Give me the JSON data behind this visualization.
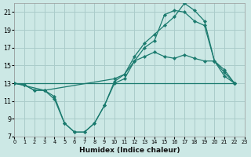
{
  "xlabel": "Humidex (Indice chaleur)",
  "background_color": "#cce8e5",
  "grid_color": "#aaccca",
  "line_color": "#1a7a6e",
  "xlim": [
    0,
    23
  ],
  "ylim": [
    7,
    22
  ],
  "xtick_vals": [
    0,
    1,
    2,
    3,
    4,
    5,
    6,
    7,
    8,
    9,
    10,
    11,
    12,
    13,
    14,
    15,
    16,
    17,
    18,
    19,
    20,
    21,
    22,
    23
  ],
  "ytick_vals": [
    7,
    9,
    11,
    13,
    15,
    17,
    19,
    21
  ],
  "series": [
    {
      "x": [
        0,
        1,
        2,
        3,
        4,
        5,
        6,
        7,
        8,
        9,
        10,
        11,
        12,
        13,
        14,
        15,
        16,
        17,
        18,
        19,
        20,
        21,
        22
      ],
      "y": [
        13,
        12.8,
        12.2,
        12.2,
        11.5,
        8.5,
        7.5,
        7.5,
        8.5,
        10.5,
        13.2,
        14.0,
        16.0,
        17.5,
        18.5,
        19.5,
        20.5,
        22.0,
        21.2,
        20.0,
        15.5,
        13.8,
        13.0
      ]
    },
    {
      "x": [
        0,
        1,
        2,
        3,
        4,
        5,
        6,
        7,
        8,
        9,
        10,
        11,
        12,
        13,
        14,
        15,
        16,
        17,
        18,
        19,
        20,
        21,
        22
      ],
      "y": [
        13,
        12.8,
        12.2,
        12.2,
        11.2,
        8.5,
        7.5,
        7.5,
        8.5,
        10.5,
        13.0,
        13.5,
        15.5,
        17.0,
        17.8,
        20.7,
        21.2,
        21.0,
        20.0,
        19.5,
        15.5,
        14.2,
        13.0
      ]
    },
    {
      "x": [
        0,
        3,
        10,
        11,
        12,
        13,
        14,
        15,
        16,
        17,
        18,
        19,
        20,
        21,
        22
      ],
      "y": [
        13,
        12.2,
        13.5,
        14.0,
        15.5,
        16.0,
        16.5,
        16.0,
        15.8,
        16.2,
        15.8,
        15.5,
        15.5,
        14.5,
        13.0
      ]
    },
    {
      "x": [
        0,
        22
      ],
      "y": [
        13,
        13.0
      ]
    }
  ]
}
